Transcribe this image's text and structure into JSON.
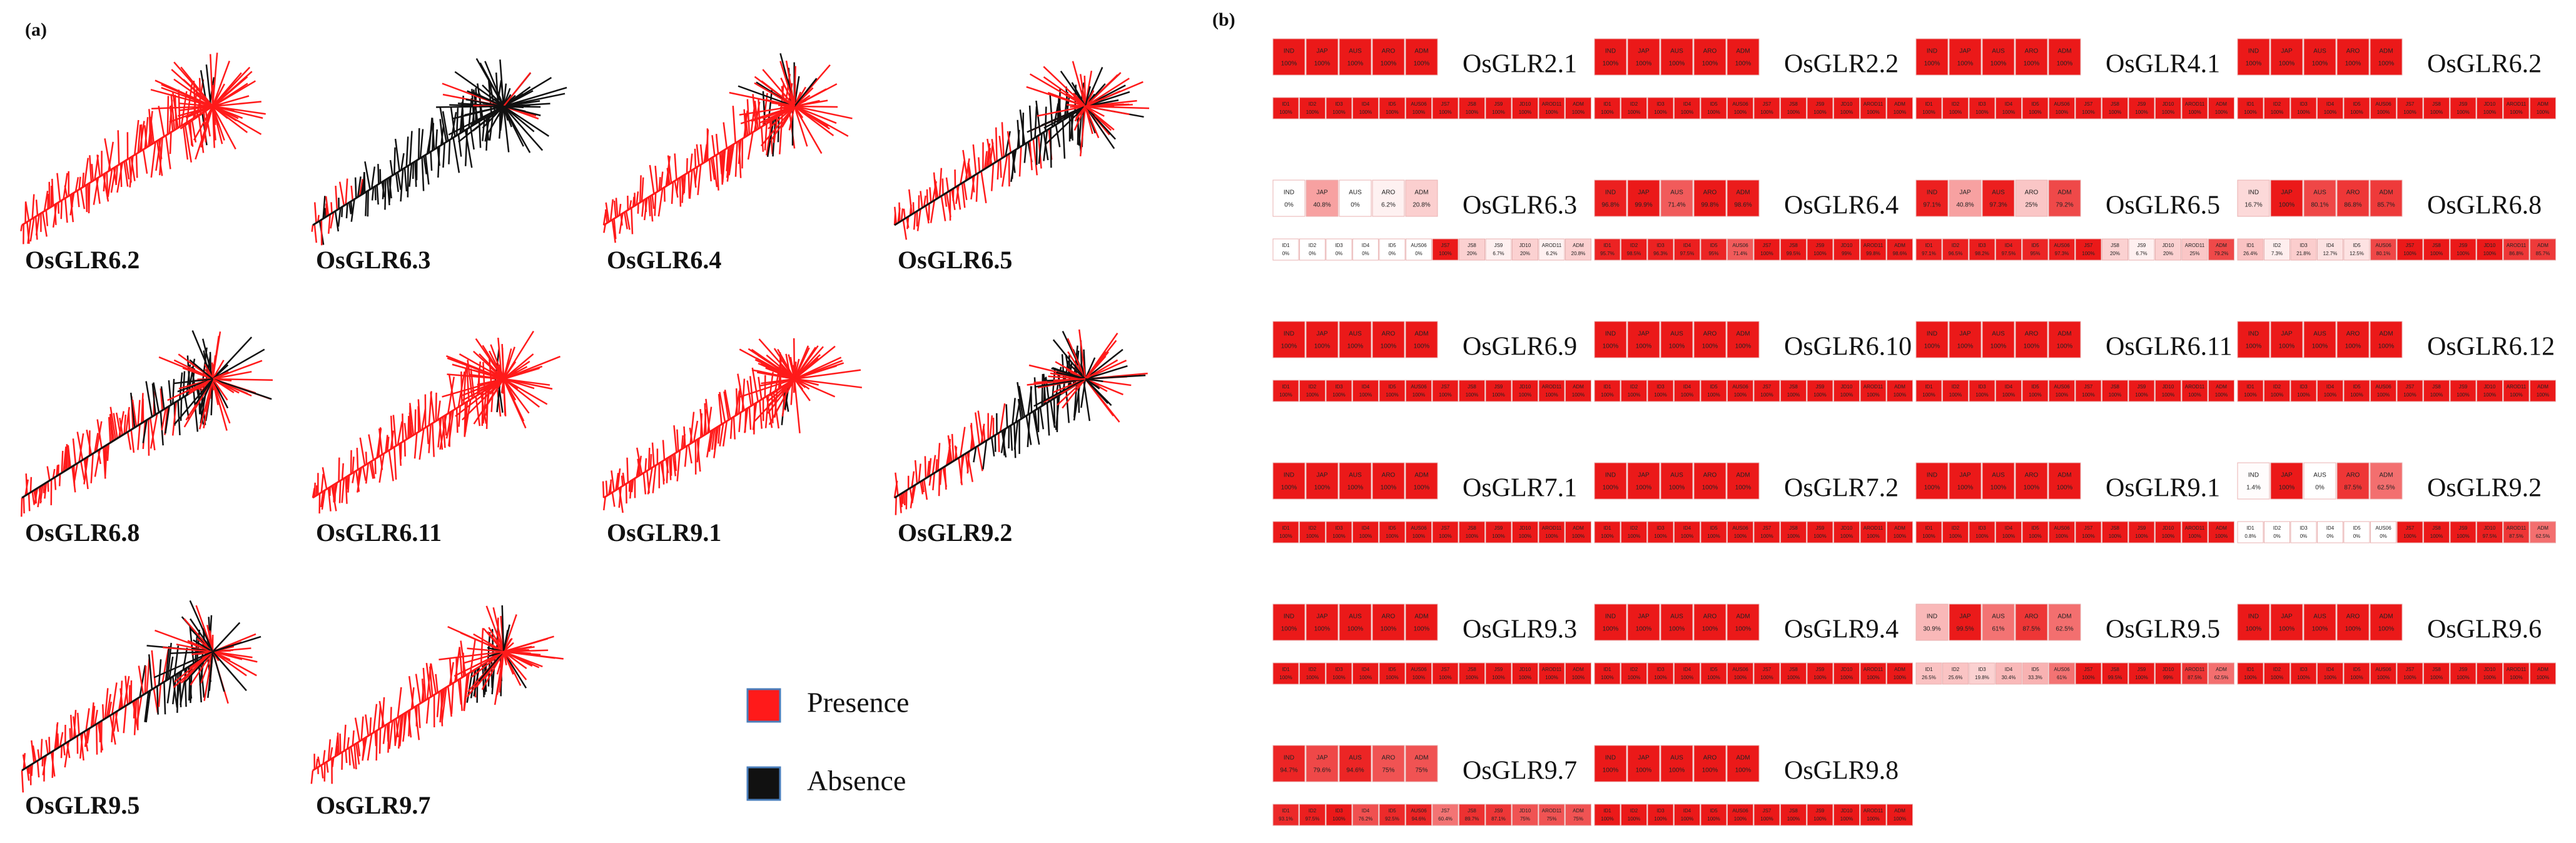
{
  "panel_a": {
    "label": "(a)",
    "trees": [
      "OsGLR6.2",
      "OsGLR6.3",
      "OsGLR6.4",
      "OsGLR6.5",
      "OsGLR6.8",
      "OsGLR6.11",
      "OsGLR9.1",
      "OsGLR9.2",
      "OsGLR9.5",
      "OsGLR9.7"
    ],
    "legend": [
      {
        "name": "Presence",
        "color": "#ff1a1a"
      },
      {
        "name": "Absence",
        "color": "#111111"
      }
    ]
  },
  "panel_b": {
    "label": "(b)",
    "top_columns": [
      "IND",
      "JAP",
      "AUS",
      "ARO",
      "ADM"
    ],
    "bottom_columns": [
      "ID1",
      "ID2",
      "ID3",
      "ID4",
      "ID5",
      "AUS06",
      "JS7",
      "JS8",
      "JS9",
      "JD10",
      "AROD11",
      "ADM"
    ],
    "genes": [
      {
        "name": "OsGLR2.1",
        "top_values": [
          100,
          100,
          100,
          100,
          100
        ],
        "top_value_labels": [
          "100%",
          "100%",
          "100%",
          "100%",
          "100%"
        ],
        "bottom_values": [
          100,
          100,
          100,
          100,
          100,
          100,
          100,
          100,
          100,
          100,
          100,
          100
        ],
        "bottom_value_labels": [
          "100%",
          "100%",
          "100%",
          "100%",
          "100%",
          "100%",
          "100%",
          "100%",
          "100%",
          "100%",
          "100%",
          "100%"
        ]
      },
      {
        "name": "OsGLR2.2",
        "top_values": [
          100,
          100,
          100,
          100,
          100
        ],
        "top_value_labels": [
          "100%",
          "100%",
          "100%",
          "100%",
          "100%"
        ],
        "bottom_values": [
          100,
          100,
          100,
          100,
          100,
          100,
          100,
          100,
          100,
          100,
          100,
          100
        ],
        "bottom_value_labels": [
          "100%",
          "100%",
          "100%",
          "100%",
          "100%",
          "100%",
          "100%",
          "100%",
          "100%",
          "100%",
          "100%",
          "100%"
        ]
      },
      {
        "name": "OsGLR4.1",
        "top_values": [
          100,
          100,
          100,
          100,
          100
        ],
        "top_value_labels": [
          "100%",
          "100%",
          "100%",
          "100%",
          "100%"
        ],
        "bottom_values": [
          100,
          100,
          100,
          100,
          100,
          100,
          100,
          100,
          100,
          100,
          100,
          100
        ],
        "bottom_value_labels": [
          "100%",
          "100%",
          "100%",
          "100%",
          "100%",
          "100%",
          "100%",
          "100%",
          "100%",
          "100%",
          "100%",
          "100%"
        ]
      },
      {
        "name": "OsGLR6.2",
        "top_values": [
          100,
          100,
          100,
          100,
          100
        ],
        "top_value_labels": [
          "100%",
          "100%",
          "100%",
          "100%",
          "100%"
        ],
        "bottom_values": [
          100,
          100,
          100,
          100,
          100,
          100,
          100,
          100,
          100,
          100,
          100,
          100
        ],
        "bottom_value_labels": [
          "100%",
          "100%",
          "100%",
          "100%",
          "100%",
          "100%",
          "100%",
          "100%",
          "100%",
          "100%",
          "100%",
          "100%"
        ]
      },
      {
        "name": "OsGLR6.3",
        "top_values": [
          0,
          40.8,
          0,
          6.2,
          20.8
        ],
        "top_value_labels": [
          "0%",
          "40.8%",
          "0%",
          "6.2%",
          "20.8%"
        ],
        "bottom_values": [
          0,
          0,
          0,
          0,
          0,
          0,
          100,
          20,
          6.7,
          20,
          6.2,
          20.8
        ],
        "bottom_value_labels": [
          "0%",
          "0%",
          "0%",
          "0%",
          "0%",
          "0%",
          "100%",
          "20%",
          "6.7%",
          "20%",
          "6.2%",
          "20.8%"
        ]
      },
      {
        "name": "OsGLR6.4",
        "top_values": [
          96.8,
          99.9,
          71.4,
          99.8,
          98.6
        ],
        "top_value_labels": [
          "96.8%",
          "99.9%",
          "71.4%",
          "99.8%",
          "98.6%"
        ],
        "bottom_values": [
          95.7,
          98.5,
          96.3,
          97.5,
          95,
          71.4,
          100,
          99.5,
          100,
          99,
          99.8,
          98.6
        ],
        "bottom_value_labels": [
          "95.7%",
          "98.5%",
          "96.3%",
          "97.5%",
          "95%",
          "71.4%",
          "100%",
          "99.5%",
          "100%",
          "99%",
          "99.8%",
          "98.6%"
        ]
      },
      {
        "name": "OsGLR6.5",
        "top_values": [
          97.1,
          40.8,
          97.3,
          25,
          79.2
        ],
        "top_value_labels": [
          "97.1%",
          "40.8%",
          "97.3%",
          "25%",
          "79.2%"
        ],
        "bottom_values": [
          97.1,
          96.5,
          98.2,
          97.5,
          95,
          97.3,
          100,
          20,
          6.7,
          20,
          25,
          79.2
        ],
        "bottom_value_labels": [
          "97.1%",
          "96.5%",
          "98.2%",
          "97.5%",
          "95%",
          "97.3%",
          "100%",
          "20%",
          "6.7%",
          "20%",
          "25%",
          "79.2%"
        ]
      },
      {
        "name": "OsGLR6.8",
        "top_values": [
          16.7,
          100,
          80.1,
          86.8,
          85.7
        ],
        "top_value_labels": [
          "16.7%",
          "100%",
          "80.1%",
          "86.8%",
          "85.7%"
        ],
        "bottom_values": [
          26.4,
          7.3,
          21.8,
          12.7,
          12.5,
          80.1,
          100,
          100,
          100,
          100,
          86.8,
          85.7
        ],
        "bottom_value_labels": [
          "26.4%",
          "7.3%",
          "21.8%",
          "12.7%",
          "12.5%",
          "80.1%",
          "100%",
          "100%",
          "100%",
          "100%",
          "86.8%",
          "85.7%"
        ]
      },
      {
        "name": "OsGLR6.9",
        "top_values": [
          100,
          100,
          100,
          100,
          100
        ],
        "top_value_labels": [
          "100%",
          "100%",
          "100%",
          "100%",
          "100%"
        ],
        "bottom_values": [
          100,
          100,
          100,
          100,
          100,
          100,
          100,
          100,
          100,
          100,
          100,
          100
        ],
        "bottom_value_labels": [
          "100%",
          "100%",
          "100%",
          "100%",
          "100%",
          "100%",
          "100%",
          "100%",
          "100%",
          "100%",
          "100%",
          "100%"
        ]
      },
      {
        "name": "OsGLR6.10",
        "top_values": [
          100,
          100,
          100,
          100,
          100
        ],
        "top_value_labels": [
          "100%",
          "100%",
          "100%",
          "100%",
          "100%"
        ],
        "bottom_values": [
          100,
          100,
          100,
          100,
          100,
          100,
          100,
          100,
          100,
          100,
          100,
          100
        ],
        "bottom_value_labels": [
          "100%",
          "100%",
          "100%",
          "100%",
          "100%",
          "100%",
          "100%",
          "100%",
          "100%",
          "100%",
          "100%",
          "100%"
        ]
      },
      {
        "name": "OsGLR6.11",
        "top_values": [
          100,
          100,
          100,
          100,
          100
        ],
        "top_value_labels": [
          "100%",
          "100%",
          "100%",
          "100%",
          "100%"
        ],
        "bottom_values": [
          100,
          100,
          100,
          100,
          100,
          100,
          100,
          100,
          100,
          100,
          100,
          100
        ],
        "bottom_value_labels": [
          "100%",
          "100%",
          "100%",
          "100%",
          "100%",
          "100%",
          "100%",
          "100%",
          "100%",
          "100%",
          "100%",
          "100%"
        ]
      },
      {
        "name": "OsGLR6.12",
        "top_values": [
          100,
          100,
          100,
          100,
          100
        ],
        "top_value_labels": [
          "100%",
          "100%",
          "100%",
          "100%",
          "100%"
        ],
        "bottom_values": [
          100,
          100,
          100,
          100,
          100,
          100,
          100,
          100,
          100,
          100,
          100,
          100
        ],
        "bottom_value_labels": [
          "100%",
          "100%",
          "100%",
          "100%",
          "100%",
          "100%",
          "100%",
          "100%",
          "100%",
          "100%",
          "100%",
          "100%"
        ]
      },
      {
        "name": "OsGLR7.1",
        "top_values": [
          100,
          100,
          100,
          100,
          100
        ],
        "top_value_labels": [
          "100%",
          "100%",
          "100%",
          "100%",
          "100%"
        ],
        "bottom_values": [
          100,
          100,
          100,
          100,
          100,
          100,
          100,
          100,
          100,
          100,
          100,
          100
        ],
        "bottom_value_labels": [
          "100%",
          "100%",
          "100%",
          "100%",
          "100%",
          "100%",
          "100%",
          "100%",
          "100%",
          "100%",
          "100%",
          "100%"
        ]
      },
      {
        "name": "OsGLR7.2",
        "top_values": [
          100,
          100,
          100,
          100,
          100
        ],
        "top_value_labels": [
          "100%",
          "100%",
          "100%",
          "100%",
          "100%"
        ],
        "bottom_values": [
          100,
          100,
          100,
          100,
          100,
          100,
          100,
          100,
          100,
          100,
          100,
          100
        ],
        "bottom_value_labels": [
          "100%",
          "100%",
          "100%",
          "100%",
          "100%",
          "100%",
          "100%",
          "100%",
          "100%",
          "100%",
          "100%",
          "100%"
        ]
      },
      {
        "name": "OsGLR9.1",
        "top_values": [
          100,
          100,
          100,
          100,
          100
        ],
        "top_value_labels": [
          "100%",
          "100%",
          "100%",
          "100%",
          "100%"
        ],
        "bottom_values": [
          100,
          100,
          100,
          100,
          100,
          100,
          100,
          100,
          100,
          100,
          100,
          100
        ],
        "bottom_value_labels": [
          "100%",
          "100%",
          "100%",
          "100%",
          "100%",
          "100%",
          "100%",
          "100%",
          "100%",
          "100%",
          "100%",
          "100%"
        ]
      },
      {
        "name": "OsGLR9.2",
        "top_values": [
          1.4,
          100,
          0,
          87.5,
          62.5
        ],
        "top_value_labels": [
          "1.4%",
          "100%",
          "0%",
          "87.5%",
          "62.5%"
        ],
        "bottom_values": [
          0.8,
          0,
          0,
          0,
          0,
          0,
          100,
          100,
          100,
          97.5,
          87.5,
          62.5
        ],
        "bottom_value_labels": [
          "0.8%",
          "0%",
          "0%",
          "0%",
          "0%",
          "0%",
          "100%",
          "100%",
          "100%",
          "97.5%",
          "87.5%",
          "62.5%"
        ]
      },
      {
        "name": "OsGLR9.3",
        "top_values": [
          100,
          100,
          100,
          100,
          100
        ],
        "top_value_labels": [
          "100%",
          "100%",
          "100%",
          "100%",
          "100%"
        ],
        "bottom_values": [
          100,
          100,
          100,
          100,
          100,
          100,
          100,
          100,
          100,
          100,
          100,
          100
        ],
        "bottom_value_labels": [
          "100%",
          "100%",
          "100%",
          "100%",
          "100%",
          "100%",
          "100%",
          "100%",
          "100%",
          "100%",
          "100%",
          "100%"
        ]
      },
      {
        "name": "OsGLR9.4",
        "top_values": [
          100,
          100,
          100,
          100,
          100
        ],
        "top_value_labels": [
          "100%",
          "100%",
          "100%",
          "100%",
          "100%"
        ],
        "bottom_values": [
          100,
          100,
          100,
          100,
          100,
          100,
          100,
          100,
          100,
          100,
          100,
          100
        ],
        "bottom_value_labels": [
          "100%",
          "100%",
          "100%",
          "100%",
          "100%",
          "100%",
          "100%",
          "100%",
          "100%",
          "100%",
          "100%",
          "100%"
        ]
      },
      {
        "name": "OsGLR9.5",
        "top_values": [
          30.9,
          99.5,
          61,
          87.5,
          62.5
        ],
        "top_value_labels": [
          "30.9%",
          "99.5%",
          "61%",
          "87.5%",
          "62.5%"
        ],
        "bottom_values": [
          26.5,
          25.6,
          19.8,
          30.4,
          33.3,
          61,
          100,
          99.5,
          100,
          99,
          87.5,
          62.5
        ],
        "bottom_value_labels": [
          "26.5%",
          "25.6%",
          "19.8%",
          "30.4%",
          "33.3%",
          "61%",
          "100%",
          "99.5%",
          "100%",
          "99%",
          "87.5%",
          "62.5%"
        ]
      },
      {
        "name": "OsGLR9.6",
        "top_values": [
          100,
          100,
          100,
          100,
          100
        ],
        "top_value_labels": [
          "100%",
          "100%",
          "100%",
          "100%",
          "100%"
        ],
        "bottom_values": [
          100,
          100,
          100,
          100,
          100,
          100,
          100,
          100,
          100,
          100,
          100,
          100
        ],
        "bottom_value_labels": [
          "100%",
          "100%",
          "100%",
          "100%",
          "100%",
          "100%",
          "100%",
          "100%",
          "100%",
          "100%",
          "100%",
          "100%"
        ]
      },
      {
        "name": "OsGLR9.7",
        "top_values": [
          94.7,
          79.6,
          94.6,
          75,
          75
        ],
        "top_value_labels": [
          "94.7%",
          "79.6%",
          "94.6%",
          "75%",
          "75%"
        ],
        "bottom_values": [
          93.1,
          97.5,
          100,
          76.2,
          92.5,
          94.6,
          60.4,
          89.7,
          87.1,
          75,
          75,
          75
        ],
        "bottom_value_labels": [
          "93.1%",
          "97.5%",
          "100%",
          "76.2%",
          "92.5%",
          "94.6%",
          "60.4%",
          "89.7%",
          "87.1%",
          "75%",
          "75%",
          "75%"
        ]
      },
      {
        "name": "OsGLR9.8",
        "top_values": [
          100,
          100,
          100,
          100,
          100
        ],
        "top_value_labels": [
          "100%",
          "100%",
          "100%",
          "100%",
          "100%"
        ],
        "bottom_values": [
          100,
          100,
          100,
          100,
          100,
          100,
          100,
          100,
          100,
          100,
          100,
          100
        ],
        "bottom_value_labels": [
          "100%",
          "100%",
          "100%",
          "100%",
          "100%",
          "100%",
          "100%",
          "100%",
          "100%",
          "100%",
          "100%",
          "100%"
        ]
      }
    ]
  }
}
